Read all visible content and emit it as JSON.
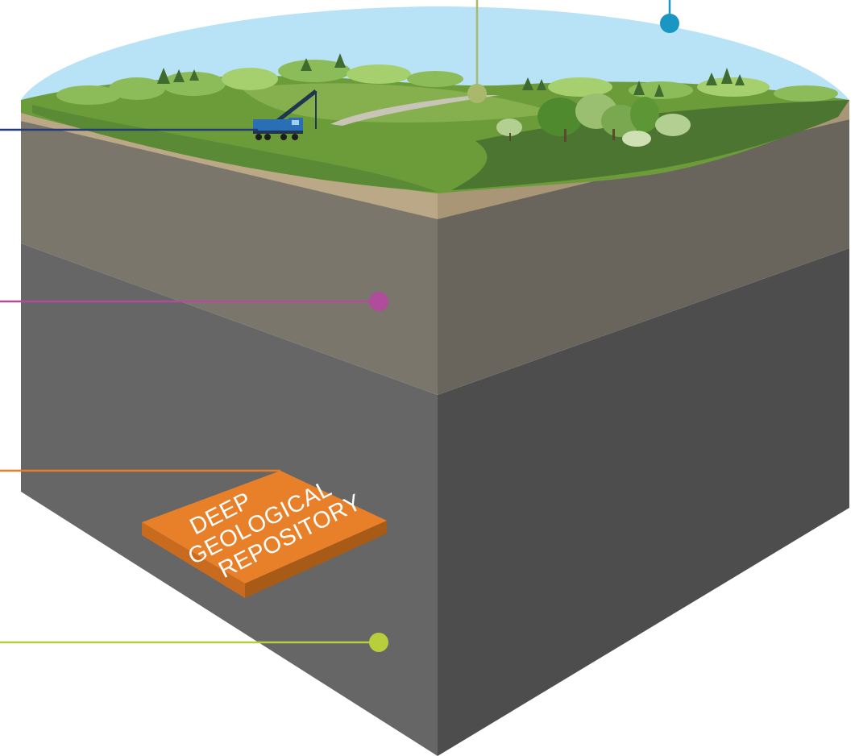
{
  "diagram": {
    "repository_label": {
      "line1": "DEEP",
      "line2": "GEOLOGICAL",
      "line3": "REPOSITORY"
    },
    "callouts": [
      {
        "id": "sky",
        "color": "#1a96c3"
      },
      {
        "id": "landscape",
        "color": "#a9b86a"
      },
      {
        "id": "drilling-rig",
        "color": "#243b7a"
      },
      {
        "id": "overburden",
        "color": "#b04c9a"
      },
      {
        "id": "repository",
        "color": "#e57d24"
      },
      {
        "id": "host-rock",
        "color": "#b9ce3c"
      }
    ],
    "colors": {
      "sky": "#b8e2f6",
      "grass_light": "#6c9c3a",
      "grass_dark": "#4b7530",
      "soil_edge": "#bba887",
      "sediment_front": "#7b766c",
      "sediment_side": "#6a655c",
      "rock_front": "#666666",
      "rock_side": "#4d4d4d",
      "repository_top": "#e8802a",
      "repository_side": "#b7601a"
    }
  }
}
